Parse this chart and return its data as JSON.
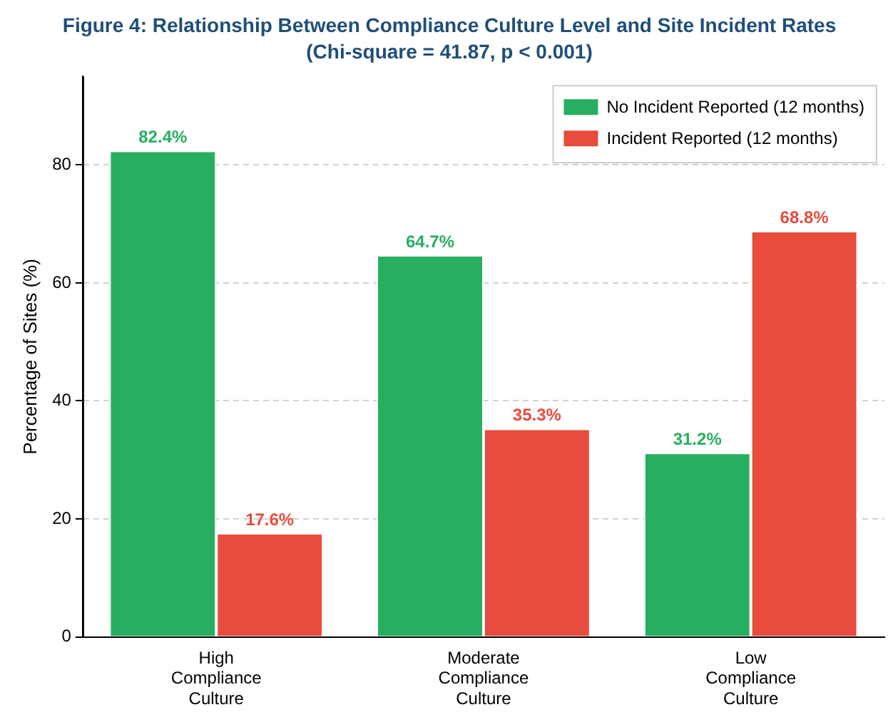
{
  "chart_data": {
    "type": "bar",
    "title": "Figure 4: Relationship Between Compliance Culture Level and Site Incident Rates",
    "subtitle": "(Chi-square = 41.87, p < 0.001)",
    "ylabel": "Percentage of Sites (%)",
    "categories": [
      "High Compliance Culture",
      "Moderate Compliance Culture",
      "Low Compliance Culture"
    ],
    "series": [
      {
        "name": "No Incident Reported (12 months)",
        "color": "#27ae60",
        "values": [
          82.4,
          64.7,
          31.2
        ],
        "value_labels": [
          "82.4%",
          "64.7%",
          "31.2%"
        ]
      },
      {
        "name": "Incident Reported (12 months)",
        "color": "#e74c3c",
        "values": [
          17.6,
          35.3,
          68.8
        ],
        "value_labels": [
          "17.6%",
          "35.3%",
          "68.8%"
        ]
      }
    ],
    "ylim": [
      0,
      95
    ],
    "yticks": [
      0,
      20,
      40,
      60,
      80
    ],
    "grid": "y",
    "legend": "top right"
  }
}
